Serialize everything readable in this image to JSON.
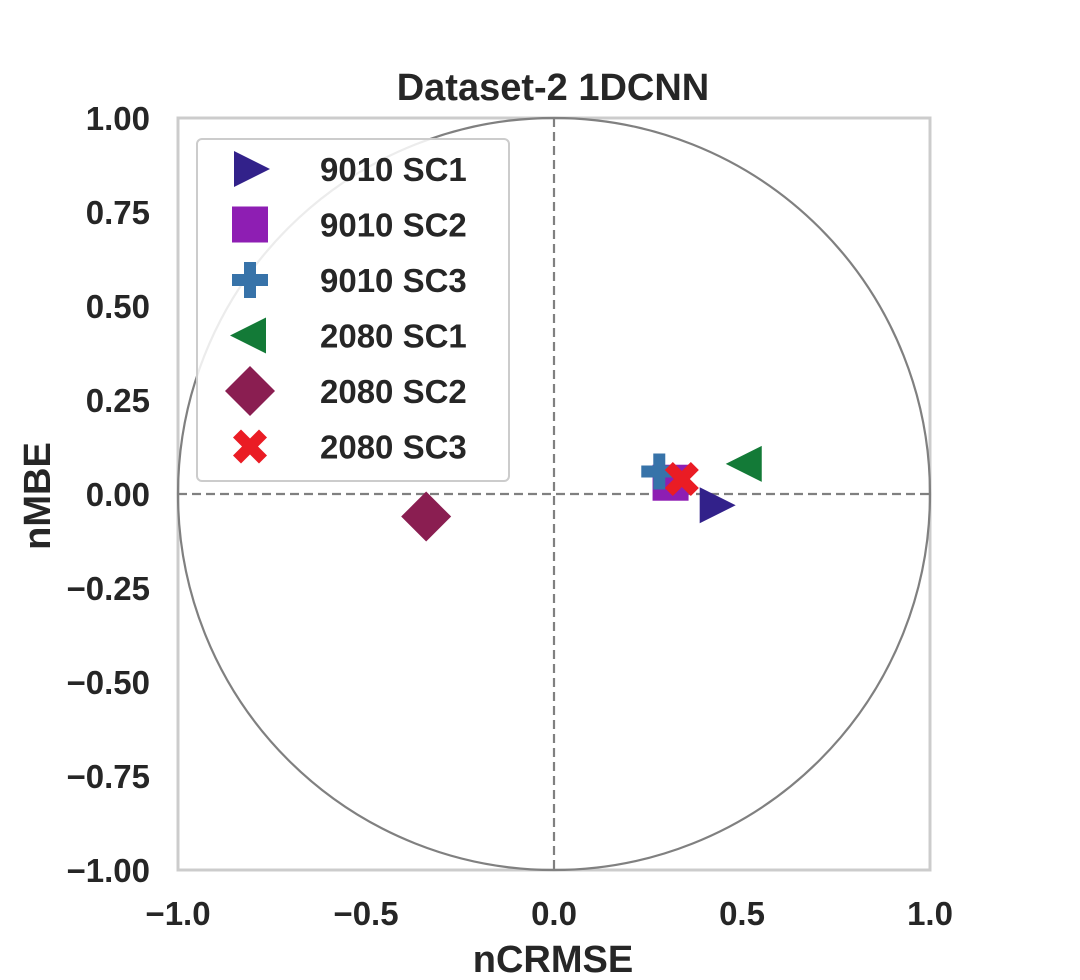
{
  "chart_data": {
    "type": "scatter",
    "title": "Dataset-2 1DCNN",
    "xlabel": "nCRMSE",
    "ylabel": "nMBE",
    "xlim": [
      -1.0,
      1.0
    ],
    "ylim": [
      -1.0,
      1.0
    ],
    "x_ticks": [
      -1.0,
      -0.5,
      0.0,
      0.5,
      1.0
    ],
    "x_tick_labels": [
      "−1.0",
      "−0.5",
      "0.0",
      "0.5",
      "1.0"
    ],
    "y_ticks": [
      1.0,
      0.75,
      0.5,
      0.25,
      0.0,
      -0.25,
      -0.5,
      -0.75,
      -1.0
    ],
    "y_tick_labels": [
      "1.00",
      "0.75",
      "0.50",
      "0.25",
      "0.00",
      "−0.25",
      "−0.50",
      "−0.75",
      "−1.00"
    ],
    "grid": false,
    "reference_lines": {
      "unit_circle": true,
      "zero_axes_dashed": true
    },
    "legend_position": "top-left",
    "series": [
      {
        "name": "9010 SC1",
        "marker": "triangle-right",
        "color": "#32218a",
        "x": 0.43,
        "y": -0.03
      },
      {
        "name": "9010 SC2",
        "marker": "square",
        "color": "#8e1eb3",
        "x": 0.31,
        "y": 0.03
      },
      {
        "name": "9010 SC3",
        "marker": "plus",
        "color": "#3773a9",
        "x": 0.28,
        "y": 0.06
      },
      {
        "name": "2080 SC1",
        "marker": "triangle-left",
        "color": "#137a37",
        "x": 0.51,
        "y": 0.08
      },
      {
        "name": "2080 SC2",
        "marker": "diamond",
        "color": "#8a1e51",
        "x": -0.34,
        "y": -0.06
      },
      {
        "name": "2080 SC3",
        "marker": "x",
        "color": "#ea1c24",
        "x": 0.34,
        "y": 0.04
      }
    ]
  }
}
